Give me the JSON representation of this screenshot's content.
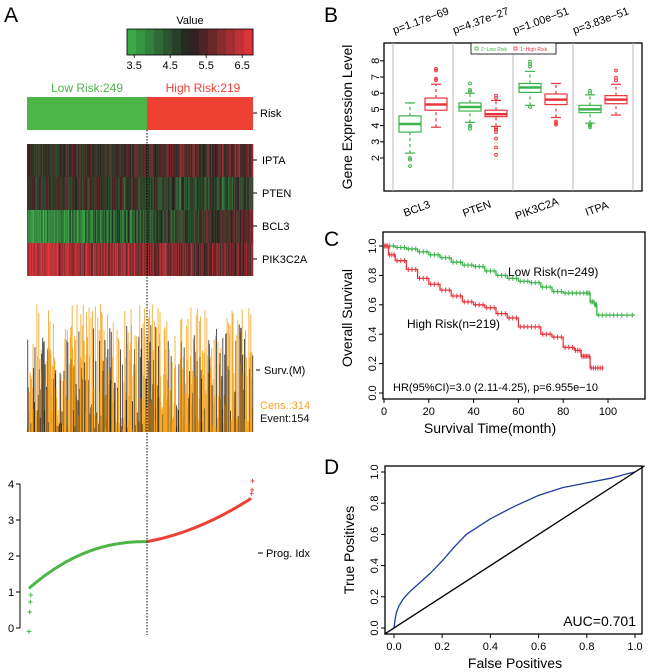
{
  "chart_data": [
    {
      "panel": "A",
      "type": "heatmap",
      "title": "",
      "colorbar": {
        "title": "Value",
        "ticks": [
          "3.5",
          "4.5",
          "5.5",
          "6.5"
        ],
        "range": [
          3.3,
          6.8
        ],
        "low_color": "#3cb44b",
        "mid_color": "#231f20",
        "high_color": "#e8363c"
      },
      "risk_groups": [
        {
          "label": "Low Risk:249",
          "n": 249,
          "color": "#4cb748"
        },
        {
          "label": "High Risk:219",
          "n": 219,
          "color": "#ef4036"
        }
      ],
      "risk_row_label": "Risk",
      "gene_rows": [
        {
          "label": "IPTA",
          "trend_low": 4.9,
          "trend_high": 5.6
        },
        {
          "label": "PTEN",
          "trend_low": 5.1,
          "trend_high": 4.6
        },
        {
          "label": "BCL3",
          "trend_low": 3.6,
          "trend_high": 5.4
        },
        {
          "label": "PIK3C2A",
          "trend_low": 6.5,
          "trend_high": 5.5
        }
      ],
      "survival_bars": {
        "label": "Surv.(M)",
        "censored_label": "Cens.:314",
        "event_label": "Event:154",
        "censored_color": "#f7a21b",
        "event_color": "#231f20"
      },
      "prognostic_index": {
        "label": "Prog. Idx",
        "ylim": [
          0,
          4
        ],
        "yticks": [
          "0",
          "1",
          "2",
          "3",
          "4"
        ],
        "cutoff": 2.4,
        "low_tail": [
          -0.1,
          0.45,
          0.72,
          0.92
        ],
        "low_curve_start": 1.1,
        "high_curve_end": 3.6,
        "high_tail": [
          3.75,
          3.85,
          4.1
        ]
      }
    },
    {
      "panel": "B",
      "type": "bar",
      "subtype": "boxplot",
      "title": "",
      "xlabel": "",
      "ylabel": "Gene Expression Level",
      "ylim": [
        1.3,
        8.8
      ],
      "yticks": [
        "2",
        "3",
        "4",
        "5",
        "6",
        "7",
        "8"
      ],
      "categories": [
        "BCL3",
        "PTEN",
        "PIK3C2A",
        "ITPA"
      ],
      "pvalues": [
        "p=1.17e−69",
        "p=4.37e−27",
        "p=1.00e−51",
        "p=3.83e−51"
      ],
      "legend": [
        {
          "label": "2~Low Risk",
          "color": "#3cb44b"
        },
        {
          "label": "1~High Risk",
          "color": "#e8363c"
        }
      ],
      "legend_position": "top-center",
      "series": [
        {
          "name": "2~Low Risk",
          "boxes": [
            {
              "whisker_low": 2.3,
              "q1": 3.6,
              "median": 4.1,
              "q3": 4.6,
              "whisker_high": 5.4,
              "outliers": [
                1.5,
                1.9,
                2.0
              ]
            },
            {
              "whisker_low": 4.2,
              "q1": 4.9,
              "median": 5.15,
              "q3": 5.4,
              "whisker_high": 6.0,
              "outliers": [
                3.8,
                3.95,
                4.0,
                6.1,
                6.2,
                6.6
              ]
            },
            {
              "whisker_low": 5.25,
              "q1": 6.05,
              "median": 6.35,
              "q3": 6.6,
              "whisker_high": 7.35,
              "outliers": [
                5.15,
                7.65,
                7.8,
                7.95
              ]
            },
            {
              "whisker_low": 4.15,
              "q1": 4.8,
              "median": 5.0,
              "q3": 5.25,
              "whisker_high": 5.9,
              "outliers": [
                3.9,
                4.0,
                4.1,
                6.0,
                6.15
              ]
            }
          ]
        },
        {
          "name": "1~High Risk",
          "boxes": [
            {
              "whisker_low": 3.9,
              "q1": 4.95,
              "median": 5.3,
              "q3": 5.7,
              "whisker_high": 6.55,
              "outliers": [
                6.8,
                6.9,
                7.4,
                7.5
              ]
            },
            {
              "whisker_low": 3.95,
              "q1": 4.55,
              "median": 4.7,
              "q3": 4.95,
              "whisker_high": 5.55,
              "outliers": [
                2.2,
                2.65,
                3.2,
                3.6,
                3.75,
                3.85,
                5.7,
                5.85
              ]
            },
            {
              "whisker_low": 4.5,
              "q1": 5.3,
              "median": 5.6,
              "q3": 5.95,
              "whisker_high": 6.6,
              "outliers": [
                4.05,
                4.15,
                4.25
              ]
            },
            {
              "whisker_low": 4.65,
              "q1": 5.35,
              "median": 5.6,
              "q3": 5.85,
              "whisker_high": 6.55,
              "outliers": [
                6.8,
                6.95,
                7.4
              ]
            }
          ]
        }
      ]
    },
    {
      "panel": "C",
      "type": "line",
      "subtype": "kaplan-meier",
      "title": "",
      "xlabel": "Survival Time(month)",
      "ylabel": "Overall Survival",
      "xlim": [
        0,
        117
      ],
      "ylim": [
        0,
        1.03
      ],
      "xticks": [
        "0",
        "20",
        "40",
        "60",
        "80",
        "100"
      ],
      "yticks": [
        "0.0",
        "0.2",
        "0.4",
        "0.6",
        "0.8",
        "1.0"
      ],
      "annotation": "HR(95%CI)=3.0 (2.11-4.25), p=6.955e−10",
      "series": [
        {
          "name": "Low Risk(n=249)",
          "color": "#3cb44b",
          "x": [
            0,
            5,
            10,
            15,
            20,
            25,
            30,
            35,
            40,
            45,
            50,
            55,
            60,
            65,
            70,
            75,
            80,
            85,
            90,
            92,
            94,
            95,
            100,
            105,
            112
          ],
          "y": [
            1.0,
            0.99,
            0.98,
            0.96,
            0.94,
            0.92,
            0.89,
            0.87,
            0.86,
            0.83,
            0.8,
            0.78,
            0.76,
            0.75,
            0.72,
            0.69,
            0.68,
            0.68,
            0.68,
            0.62,
            0.6,
            0.53,
            0.53,
            0.53,
            0.53
          ]
        },
        {
          "name": "High Risk(n=219)",
          "color": "#e8363c",
          "x": [
            0,
            2,
            5,
            10,
            15,
            20,
            25,
            30,
            35,
            40,
            45,
            50,
            55,
            60,
            65,
            70,
            75,
            80,
            85,
            88,
            90,
            92,
            95,
            98
          ],
          "y": [
            1.0,
            0.94,
            0.9,
            0.84,
            0.78,
            0.74,
            0.7,
            0.66,
            0.62,
            0.6,
            0.58,
            0.54,
            0.51,
            0.45,
            0.45,
            0.4,
            0.38,
            0.31,
            0.29,
            0.25,
            0.25,
            0.17,
            0.17,
            0.17
          ]
        }
      ]
    },
    {
      "panel": "D",
      "type": "line",
      "subtype": "roc",
      "title": "",
      "xlabel": "False Positives",
      "ylabel": "True Positives",
      "xlim": [
        -0.04,
        1.04
      ],
      "ylim": [
        -0.04,
        1.04
      ],
      "xticks": [
        "0.0",
        "0.2",
        "0.4",
        "0.6",
        "0.8",
        "1.0"
      ],
      "yticks": [
        "0.0",
        "0.2",
        "0.4",
        "0.6",
        "0.8",
        "1.0"
      ],
      "annotation": "AUC=0.701",
      "series": [
        {
          "name": "ROC",
          "color": "#1f3e99",
          "x": [
            0,
            0.005,
            0.01,
            0.02,
            0.04,
            0.07,
            0.1,
            0.15,
            0.2,
            0.25,
            0.3,
            0.4,
            0.5,
            0.6,
            0.7,
            0.8,
            0.9,
            0.97,
            1.0
          ],
          "y": [
            0,
            0.06,
            0.1,
            0.14,
            0.19,
            0.24,
            0.28,
            0.35,
            0.43,
            0.52,
            0.6,
            0.7,
            0.78,
            0.85,
            0.9,
            0.93,
            0.96,
            0.99,
            1.0
          ]
        },
        {
          "name": "Reference",
          "color": "#000000",
          "x": [
            -0.04,
            1.04
          ],
          "y": [
            -0.04,
            1.04
          ]
        }
      ]
    }
  ]
}
